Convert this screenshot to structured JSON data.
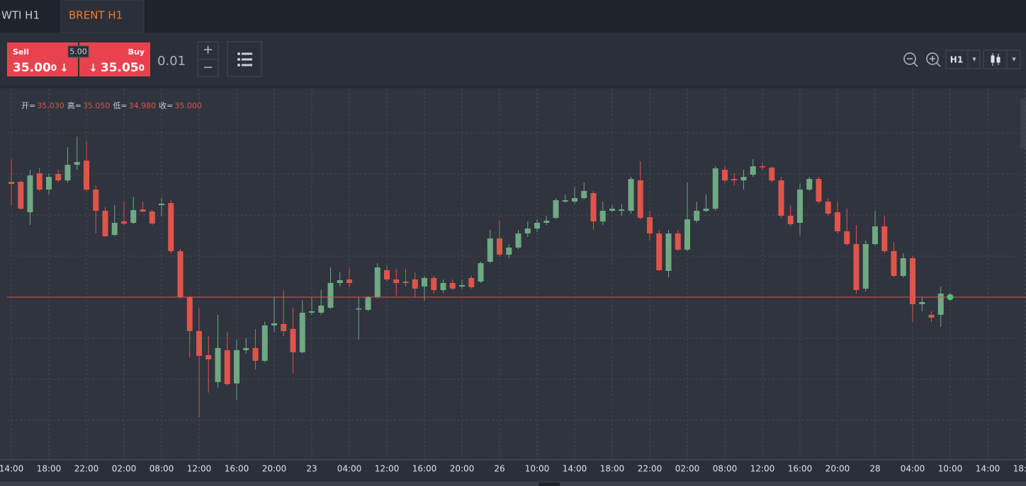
{
  "tabs": [
    "WTI H1",
    "BRENT H1"
  ],
  "trade_panel": {
    "sell_label": "Sell",
    "sell_price": "35.00",
    "sell_pip": "0",
    "arrow": "↓",
    "spread": "5.00",
    "buy_label": "Buy",
    "buy_price": "35.05",
    "buy_pip": "0",
    "quantity": "0.01",
    "plus": "+",
    "minus": "−"
  },
  "toolbar": {
    "timeframe": "H1",
    "dropdown": "▾"
  },
  "ohlc_legend": [
    {
      "label": "开=",
      "value": "35.030"
    },
    {
      "label": "高=",
      "value": "35.050"
    },
    {
      "label": "低=",
      "value": "34.980"
    },
    {
      "label": "收=",
      "value": "35.000"
    }
  ],
  "chart_data": {
    "type": "candlestick",
    "categories": [
      "14:00",
      null,
      null,
      null,
      "18:00",
      null,
      null,
      null,
      "22:00",
      null,
      null,
      null,
      "02:00",
      null,
      null,
      null,
      "08:00",
      null,
      null,
      null,
      "12:00",
      null,
      null,
      null,
      "16:00",
      null,
      null,
      null,
      "20:00",
      null,
      null,
      null,
      "23",
      null,
      null,
      null,
      "04:00",
      null,
      null,
      null,
      "12:00",
      null,
      null,
      null,
      "16:00",
      null,
      null,
      null,
      "20:00",
      null,
      null,
      null,
      "26",
      null,
      null,
      null,
      "10:00",
      null,
      null,
      null,
      "14:00",
      null,
      null,
      null,
      "18:00",
      null,
      null,
      null,
      "22:00",
      null,
      null,
      null,
      "02:00",
      null,
      null,
      null,
      "08:00",
      null,
      null,
      null,
      "12:00",
      null,
      null,
      null,
      "16:00",
      null,
      null,
      null,
      "20:00",
      null,
      null,
      null,
      "28",
      null,
      null,
      null,
      "04:00",
      null,
      null,
      null,
      "10:00",
      null,
      null,
      null,
      "14:00",
      null,
      null,
      null,
      "18:00"
    ],
    "open": [
      35.163,
      35.163,
      35.12,
      35.175,
      35.152,
      35.174,
      35.165,
      35.187,
      35.193,
      35.152,
      35.122,
      35.088,
      35.107,
      35.105,
      35.124,
      35.121,
      35.13,
      35.133,
      35.065,
      35.0,
      34.952,
      34.918,
      34.88,
      34.925,
      34.878,
      34.925,
      34.928,
      34.91,
      34.96,
      34.962,
      34.955,
      34.922,
      34.978,
      34.978,
      34.985,
      35.02,
      35.025,
      34.983,
      34.982,
      35.0,
      35.038,
      35.025,
      35.022,
      35.025,
      35.015,
      35.027,
      35.01,
      35.02,
      35.015,
      35.027,
      35.022,
      35.05,
      35.083,
      35.06,
      35.07,
      35.09,
      35.097,
      35.105,
      35.112,
      35.135,
      35.135,
      35.14,
      35.147,
      35.107,
      35.122,
      35.122,
      35.122,
      35.165,
      35.113,
      35.09,
      35.037,
      35.09,
      35.067,
      35.108,
      35.122,
      35.125,
      35.18,
      35.167,
      35.165,
      35.173,
      35.185,
      35.183,
      35.165,
      35.115,
      35.105,
      35.152,
      35.167,
      35.135,
      35.12,
      35.093,
      35.075,
      35.012,
      35.075,
      35.1,
      35.065,
      35.03,
      35.055,
      34.99,
      34.975,
      34.975,
      null,
      null,
      null,
      null,
      null,
      null,
      null,
      null,
      null
    ],
    "high": [
      35.195,
      35.165,
      35.18,
      35.183,
      35.175,
      35.18,
      35.212,
      35.227,
      35.22,
      35.158,
      35.127,
      35.13,
      35.135,
      35.142,
      35.135,
      35.124,
      35.14,
      35.137,
      35.068,
      35.002,
      34.985,
      34.945,
      34.975,
      34.95,
      34.94,
      34.942,
      34.955,
      34.965,
      35.0,
      35.01,
      34.985,
      34.995,
      35.0,
      35.01,
      35.042,
      35.035,
      35.04,
      35.0,
      35.002,
      35.048,
      35.045,
      35.04,
      35.04,
      35.035,
      35.03,
      35.03,
      35.025,
      35.025,
      35.025,
      35.03,
      35.05,
      35.095,
      35.108,
      35.075,
      35.095,
      35.107,
      35.11,
      35.115,
      35.14,
      35.145,
      35.155,
      35.162,
      35.15,
      35.135,
      35.13,
      35.132,
      35.17,
      35.192,
      35.122,
      35.095,
      35.095,
      35.095,
      35.162,
      35.135,
      35.145,
      35.185,
      35.185,
      35.175,
      35.18,
      35.195,
      35.19,
      35.185,
      35.17,
      35.13,
      35.16,
      35.17,
      35.17,
      35.14,
      35.135,
      35.125,
      35.102,
      35.08,
      35.122,
      35.115,
      35.078,
      35.062,
      35.058,
      35.0,
      34.98,
      35.015,
      null,
      null,
      null,
      null,
      null,
      null,
      null,
      null,
      null
    ],
    "low": [
      35.13,
      35.123,
      35.102,
      35.15,
      35.145,
      35.162,
      35.162,
      35.18,
      35.15,
      35.09,
      35.085,
      35.086,
      35.102,
      35.103,
      35.12,
      35.102,
      35.115,
      35.062,
      34.998,
      34.915,
      34.83,
      34.865,
      34.872,
      34.875,
      34.855,
      34.92,
      34.898,
      34.908,
      34.95,
      34.945,
      34.892,
      34.92,
      34.975,
      34.975,
      34.983,
      35.015,
      35.014,
      34.94,
      34.98,
      34.998,
      35.022,
      35.002,
      35.015,
      35.0,
      34.995,
      35.005,
      35.006,
      35.01,
      35.012,
      35.012,
      35.02,
      35.048,
      35.057,
      35.055,
      35.068,
      35.085,
      35.092,
      35.102,
      35.11,
      35.133,
      35.132,
      35.138,
      35.095,
      35.102,
      35.12,
      35.115,
      35.118,
      35.11,
      35.08,
      35.037,
      35.028,
      35.065,
      35.065,
      35.105,
      35.12,
      35.122,
      35.162,
      35.158,
      35.152,
      35.17,
      35.18,
      35.162,
      35.112,
      35.1,
      35.087,
      35.15,
      35.132,
      35.115,
      35.09,
      35.073,
      35.005,
      35.008,
      35.073,
      35.062,
      35.028,
      35.028,
      34.965,
      34.98,
      34.965,
      34.958,
      null,
      null,
      null,
      null,
      null,
      null,
      null,
      null,
      null
    ],
    "close": [
      35.16,
      35.125,
      35.172,
      35.152,
      35.17,
      35.165,
      35.187,
      35.191,
      35.152,
      35.122,
      35.086,
      35.105,
      35.104,
      35.123,
      35.121,
      35.104,
      35.132,
      35.065,
      35.0,
      34.952,
      34.917,
      34.912,
      34.928,
      34.877,
      34.925,
      34.928,
      34.91,
      34.96,
      34.963,
      34.952,
      34.922,
      34.978,
      34.98,
      34.988,
      35.02,
      35.024,
      35.02,
      34.984,
      35.0,
      35.042,
      35.025,
      35.02,
      35.02,
      35.012,
      35.027,
      35.01,
      35.02,
      35.012,
      35.017,
      35.014,
      35.048,
      35.083,
      35.06,
      35.07,
      35.09,
      35.097,
      35.105,
      35.108,
      35.137,
      35.137,
      35.14,
      35.15,
      35.107,
      35.122,
      35.125,
      35.124,
      35.167,
      35.112,
      35.09,
      35.038,
      35.09,
      35.067,
      35.11,
      35.122,
      35.125,
      35.182,
      35.165,
      35.165,
      35.17,
      35.185,
      35.184,
      35.165,
      35.115,
      35.103,
      35.152,
      35.167,
      35.135,
      35.118,
      35.093,
      35.075,
      35.01,
      35.075,
      35.1,
      35.065,
      35.03,
      35.055,
      34.99,
      34.993,
      34.971,
      35.005,
      null,
      null,
      null,
      null,
      null,
      null,
      null,
      null,
      null
    ],
    "up_color": "#6fa982",
    "down_color": "#e0544a",
    "price_line": 35.0,
    "price_line_color": "#e0544a",
    "last_dot_color": "#4cc26a",
    "ylim": [
      34.77,
      35.295
    ],
    "ygrid": [
      34.826,
      34.884,
      34.942,
      35.0,
      35.058,
      35.116,
      35.174,
      35.232
    ],
    "grid": true
  }
}
